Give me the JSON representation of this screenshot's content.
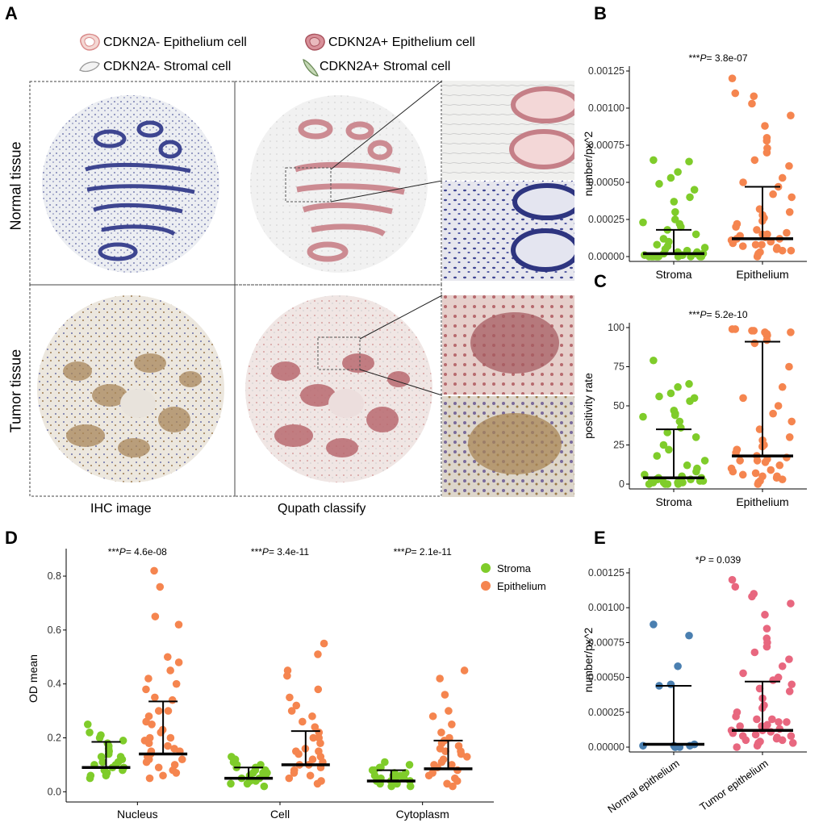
{
  "figure": {
    "panels": {
      "a": "A",
      "b": "B",
      "c": "C",
      "d": "D",
      "e": "E"
    },
    "legend_a": [
      {
        "label": "CDKN2A- Epithelium cell",
        "color": "#e8b4b4"
      },
      {
        "label": "CDKN2A+ Epithelium cell",
        "color": "#c97a82"
      },
      {
        "label": "CDKN2A- Stromal cell",
        "color": "#e6e6e6"
      },
      {
        "label": "CDKN2A+ Stromal cell",
        "color": "#9bb58a"
      }
    ],
    "row_labels": {
      "normal": "Normal tissue",
      "tumor": "Tumor tissue"
    },
    "col_labels": {
      "ihc": "IHC image",
      "qupath": "Qupath classify"
    }
  },
  "chart_data": [
    {
      "id": "B",
      "type": "scatter",
      "title": "***P= 3.8e-07",
      "ylabel": "number/px^2",
      "categories": [
        "Stroma",
        "Epithelium"
      ],
      "ylim": [
        0,
        0.00125
      ],
      "yticks": [
        "0.00000",
        "0.00025",
        "0.00050",
        "0.00075",
        "0.00100",
        "0.00125"
      ],
      "series": [
        {
          "name": "Stroma",
          "color": "#7fcc2a",
          "values": [
            0.00065,
            0.00064,
            0.00057,
            0.00053,
            0.00049,
            0.00045,
            0.0004,
            0.00037,
            0.0003,
            0.00025,
            0.00023,
            0.00022,
            0.0002,
            0.00018,
            0.00015,
            0.00012,
            0.0001,
            8e-05,
            6e-05,
            4e-05,
            3e-05,
            2e-05,
            1e-05,
            1e-05,
            0.0,
            0.0,
            0.0,
            0.0,
            0.0,
            0.0,
            2e-05,
            3e-05,
            5e-05,
            7e-05,
            0.0,
            0.0,
            1e-05,
            2e-05,
            0.0,
            0.0
          ],
          "median": 2e-05,
          "q3": 0.00018
        },
        {
          "name": "Epithelium",
          "color": "#f5854f",
          "values": [
            0.0012,
            0.0011,
            0.00108,
            0.00103,
            0.00095,
            0.00088,
            0.0008,
            0.00078,
            0.00073,
            0.0007,
            0.00065,
            0.00061,
            0.00053,
            0.0005,
            0.00047,
            0.00042,
            0.0004,
            0.00032,
            0.0003,
            0.00028,
            0.00026,
            0.00024,
            0.00022,
            0.0002,
            0.00018,
            0.00016,
            0.00015,
            0.00014,
            0.00013,
            0.00012,
            0.00011,
            0.0001,
            9e-05,
            8e-05,
            7e-05,
            6e-05,
            5e-05,
            4e-05,
            3e-05,
            2e-05,
            1e-05,
            0.0,
            0.00012,
            0.00015,
            8e-05,
            4e-05
          ],
          "median": 0.00012,
          "q3": 0.00047
        }
      ]
    },
    {
      "id": "C",
      "type": "scatter",
      "title": "***P= 5.2e-10",
      "ylabel": "positivity rate",
      "categories": [
        "Stroma",
        "Epithelium"
      ],
      "ylim": [
        0,
        100
      ],
      "yticks": [
        "0",
        "25",
        "50",
        "75",
        "100"
      ],
      "series": [
        {
          "name": "Stroma",
          "color": "#7fcc2a",
          "values": [
            79,
            64,
            62,
            58,
            56,
            55,
            53,
            47,
            45,
            44,
            43,
            40,
            36,
            33,
            30,
            25,
            22,
            18,
            15,
            12,
            10,
            8,
            6,
            5,
            4,
            3,
            3,
            2,
            2,
            1,
            1,
            1,
            0,
            0,
            0,
            0,
            1,
            2,
            3,
            4
          ],
          "median": 4,
          "q3": 35
        },
        {
          "name": "Epithelium",
          "color": "#f5854f",
          "values": [
            99,
            99,
            98,
            98,
            97,
            97,
            96,
            95,
            95,
            92,
            90,
            75,
            62,
            55,
            50,
            45,
            40,
            35,
            30,
            28,
            25,
            24,
            22,
            20,
            18,
            17,
            16,
            15,
            14,
            12,
            10,
            9,
            8,
            7,
            6,
            5,
            4,
            3,
            2,
            1,
            0,
            15,
            22,
            5
          ],
          "median": 18,
          "q3": 91
        }
      ]
    },
    {
      "id": "D",
      "type": "scatter",
      "ylabel": "OD mean",
      "categories": [
        "Nucleus",
        "Cell",
        "Cytoplasm"
      ],
      "ylim": [
        -0.02,
        0.86
      ],
      "yticks": [
        "0.0",
        "0.2",
        "0.4",
        "0.6",
        "0.8"
      ],
      "annotations": [
        "***P= 4.6e-08",
        "***P= 3.4e-11",
        "***P= 2.1e-11"
      ],
      "legend": [
        "Stroma",
        "Epithelium"
      ],
      "series": [
        {
          "name": "Stroma",
          "color": "#7fcc2a",
          "groups": [
            {
              "values": [
                0.25,
                0.22,
                0.21,
                0.2,
                0.19,
                0.18,
                0.17,
                0.16,
                0.15,
                0.14,
                0.13,
                0.12,
                0.11,
                0.1,
                0.1,
                0.09,
                0.09,
                0.08,
                0.08,
                0.07,
                0.07,
                0.06,
                0.06,
                0.05,
                0.11,
                0.13,
                0.15
              ],
              "median": 0.09,
              "q3": 0.185
            },
            {
              "values": [
                0.13,
                0.12,
                0.11,
                0.1,
                0.1,
                0.09,
                0.09,
                0.08,
                0.08,
                0.07,
                0.07,
                0.06,
                0.06,
                0.05,
                0.05,
                0.04,
                0.04,
                0.03,
                0.03,
                0.02,
                0.06,
                0.07,
                0.05
              ],
              "median": 0.05,
              "q3": 0.09
            },
            {
              "values": [
                0.11,
                0.1,
                0.09,
                0.09,
                0.08,
                0.08,
                0.07,
                0.07,
                0.06,
                0.06,
                0.05,
                0.05,
                0.04,
                0.04,
                0.03,
                0.03,
                0.02,
                0.02,
                0.06,
                0.05,
                0.04
              ],
              "median": 0.04,
              "q3": 0.08
            }
          ]
        },
        {
          "name": "Epithelium",
          "color": "#f5854f",
          "groups": [
            {
              "values": [
                0.82,
                0.76,
                0.65,
                0.62,
                0.5,
                0.48,
                0.45,
                0.42,
                0.4,
                0.38,
                0.35,
                0.34,
                0.3,
                0.28,
                0.26,
                0.25,
                0.23,
                0.22,
                0.2,
                0.19,
                0.18,
                0.17,
                0.16,
                0.15,
                0.14,
                0.13,
                0.12,
                0.11,
                0.1,
                0.09,
                0.08,
                0.07,
                0.06,
                0.05,
                0.3,
                0.2,
                0.15,
                0.12
              ],
              "median": 0.14,
              "q3": 0.335
            },
            {
              "values": [
                0.55,
                0.51,
                0.45,
                0.43,
                0.38,
                0.35,
                0.32,
                0.3,
                0.28,
                0.26,
                0.24,
                0.22,
                0.2,
                0.18,
                0.16,
                0.15,
                0.14,
                0.13,
                0.12,
                0.11,
                0.1,
                0.09,
                0.08,
                0.07,
                0.06,
                0.05,
                0.04,
                0.03,
                0.2,
                0.15,
                0.1
              ],
              "median": 0.1,
              "q3": 0.225
            },
            {
              "values": [
                0.45,
                0.42,
                0.36,
                0.3,
                0.28,
                0.25,
                0.22,
                0.2,
                0.19,
                0.18,
                0.17,
                0.16,
                0.15,
                0.14,
                0.13,
                0.12,
                0.11,
                0.1,
                0.09,
                0.08,
                0.07,
                0.06,
                0.05,
                0.04,
                0.03,
                0.02,
                0.15,
                0.1
              ],
              "median": 0.085,
              "q3": 0.19
            }
          ]
        }
      ]
    },
    {
      "id": "E",
      "type": "scatter",
      "title": "*P = 0.039",
      "ylabel": "number/px^2",
      "categories": [
        "Normal epithelium",
        "Tumor epithelium"
      ],
      "ylim": [
        0,
        0.00125
      ],
      "yticks": [
        "0.00000",
        "0.00025",
        "0.00050",
        "0.00075",
        "0.00100",
        "0.00125"
      ],
      "series": [
        {
          "name": "Normal epithelium",
          "color": "#4a7fb0",
          "values": [
            0.00088,
            0.0008,
            0.00058,
            0.00045,
            0.00044,
            2e-05,
            1e-05,
            1e-05,
            0.0,
            0.0,
            1e-05,
            0.0
          ],
          "median": 2e-05,
          "q3": 0.00044
        },
        {
          "name": "Tumor epithelium",
          "color": "#e8677f",
          "values": [
            0.0012,
            0.00115,
            0.0011,
            0.00108,
            0.00103,
            0.00095,
            0.00085,
            0.00078,
            0.00075,
            0.00072,
            0.00068,
            0.00063,
            0.00058,
            0.00053,
            0.0005,
            0.00048,
            0.00045,
            0.00042,
            0.0004,
            0.00035,
            0.0003,
            0.00028,
            0.00025,
            0.00022,
            0.0002,
            0.00018,
            0.00016,
            0.00015,
            0.00014,
            0.00013,
            0.00012,
            0.00011,
            0.0001,
            9e-05,
            8e-05,
            7e-05,
            6e-05,
            5e-05,
            4e-05,
            3e-05,
            2e-05,
            1e-05,
            0.0,
            0.00012,
            0.00015,
            8e-05,
            5e-05,
            3e-05,
            0.0002,
            0.00018
          ],
          "median": 0.00012,
          "q3": 0.00047
        }
      ]
    }
  ]
}
